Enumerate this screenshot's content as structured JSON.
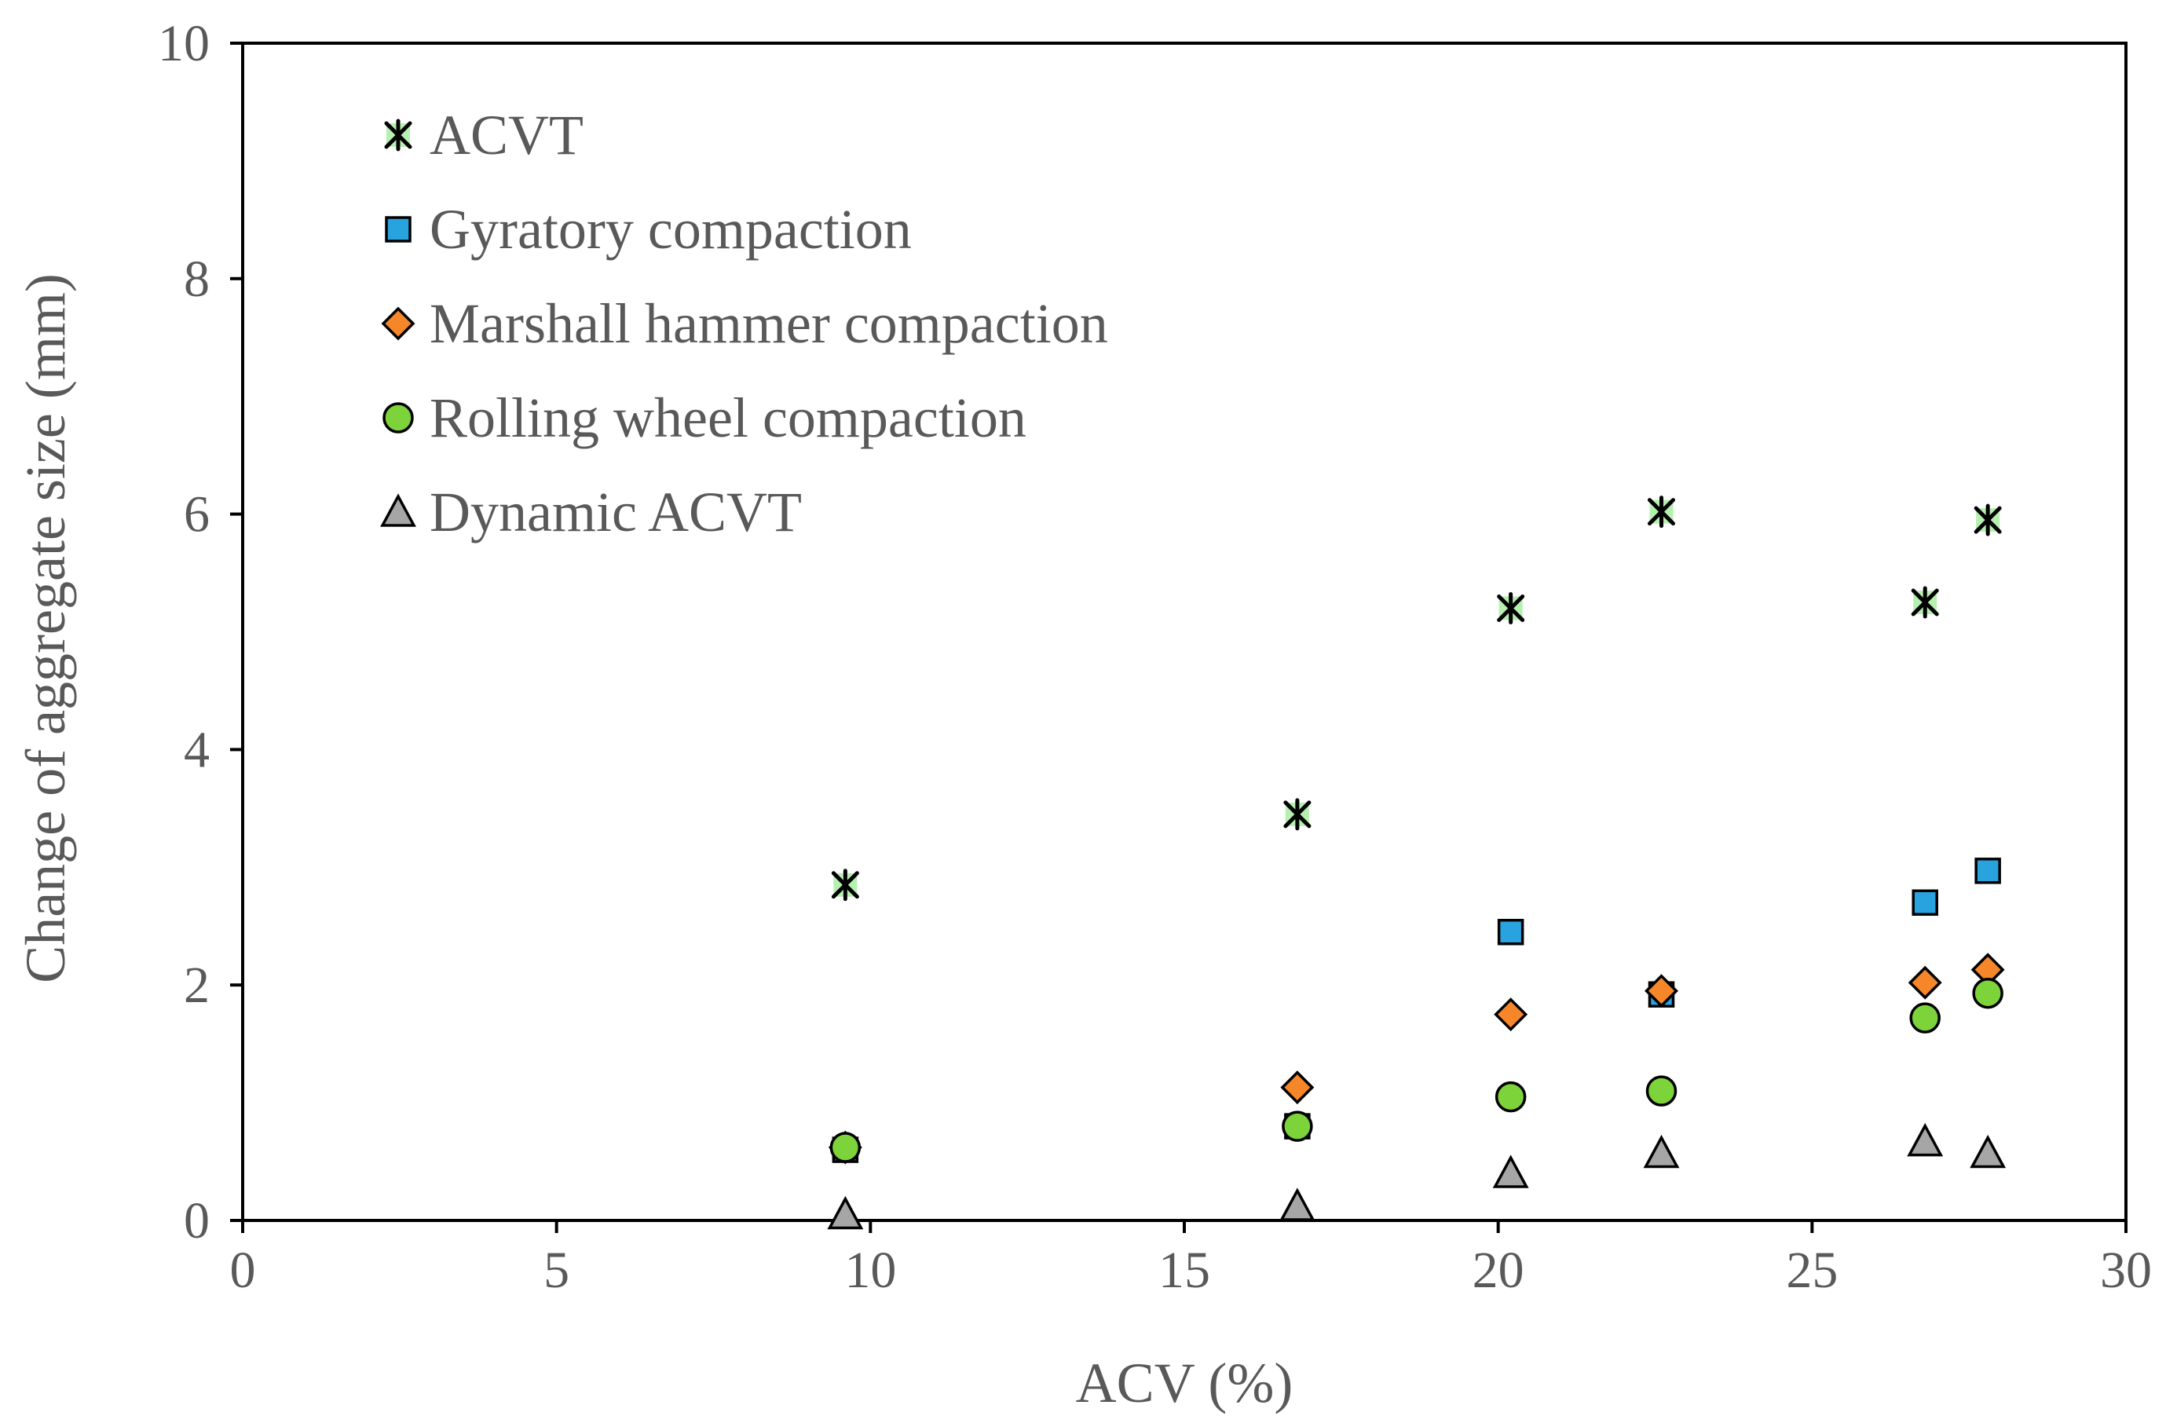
{
  "chart_data": {
    "type": "scatter",
    "title": "",
    "xlabel": "ACV (%)",
    "ylabel": "Change of aggregate size (mm)",
    "xlim": [
      0,
      30
    ],
    "ylim": [
      0,
      10
    ],
    "xticks": [
      0,
      5,
      10,
      15,
      20,
      25,
      30
    ],
    "yticks": [
      0,
      2,
      4,
      6,
      8,
      10
    ],
    "xtick_labels": [
      "0",
      "5",
      "10",
      "15",
      "20",
      "25",
      "30"
    ],
    "ytick_labels": [
      "0",
      "2",
      "4",
      "6",
      "8",
      "10"
    ],
    "grid": false,
    "legend_position": "top-left",
    "series": [
      {
        "name": "ACVT",
        "marker": "asterisk",
        "color": "#b6f0b0",
        "points": [
          [
            9.6,
            2.85
          ],
          [
            16.8,
            3.45
          ],
          [
            20.2,
            5.2
          ],
          [
            22.6,
            6.02
          ],
          [
            26.8,
            5.25
          ],
          [
            27.8,
            5.95
          ]
        ]
      },
      {
        "name": "Gyratory compaction",
        "marker": "square",
        "color": "#29a3e0",
        "points": [
          [
            9.6,
            0.6
          ],
          [
            16.8,
            0.8
          ],
          [
            20.2,
            2.45
          ],
          [
            22.6,
            1.92
          ],
          [
            26.8,
            2.7
          ],
          [
            27.8,
            2.97
          ]
        ]
      },
      {
        "name": "Marshall hammer compaction",
        "marker": "diamond",
        "color": "#f5862a",
        "points": [
          [
            9.6,
            0.62
          ],
          [
            16.8,
            1.13
          ],
          [
            20.2,
            1.75
          ],
          [
            22.6,
            1.95
          ],
          [
            26.8,
            2.02
          ],
          [
            27.8,
            2.13
          ]
        ]
      },
      {
        "name": "Rolling wheel compaction",
        "marker": "circle",
        "color": "#7cd33a",
        "points": [
          [
            9.6,
            0.62
          ],
          [
            16.8,
            0.8
          ],
          [
            20.2,
            1.05
          ],
          [
            22.6,
            1.1
          ],
          [
            26.8,
            1.72
          ],
          [
            27.8,
            1.93
          ]
        ]
      },
      {
        "name": "Dynamic ACVT",
        "marker": "triangle",
        "color": "#a6a6a6",
        "points": [
          [
            9.6,
            0.05
          ],
          [
            16.8,
            0.12
          ],
          [
            20.2,
            0.4
          ],
          [
            22.6,
            0.57
          ],
          [
            26.8,
            0.67
          ],
          [
            27.8,
            0.57
          ]
        ]
      }
    ]
  }
}
